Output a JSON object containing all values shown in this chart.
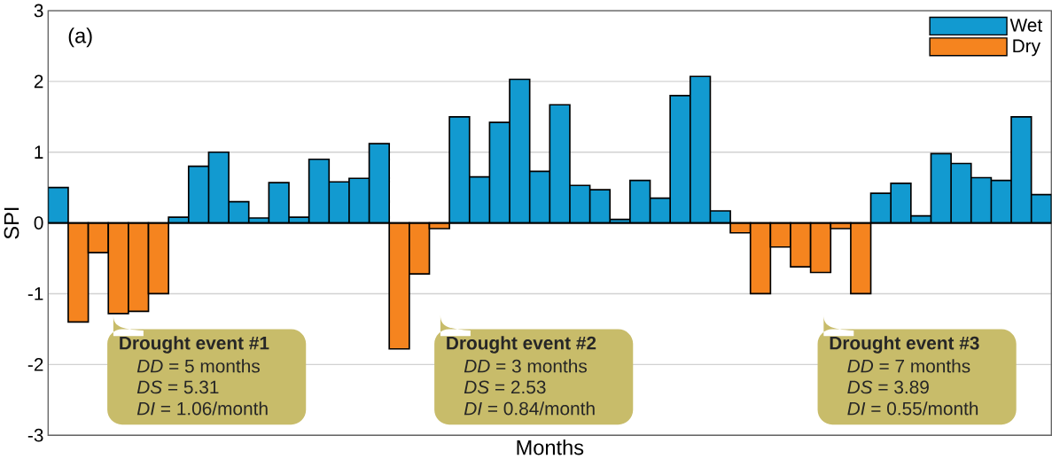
{
  "chart_data": {
    "type": "bar",
    "xlabel": "Months",
    "ylabel": "SPI",
    "categories": [
      null,
      null,
      null,
      null,
      null,
      null,
      null,
      null,
      null,
      null,
      null,
      null,
      null,
      null,
      null,
      null,
      null,
      null,
      null,
      null,
      null,
      null,
      null,
      null,
      null,
      null,
      null,
      null,
      null,
      null,
      null,
      null,
      null,
      null,
      null,
      null,
      null,
      null,
      null,
      null,
      null,
      null,
      null,
      null,
      null,
      null,
      null,
      null,
      null,
      null
    ],
    "series": [
      {
        "name": "Wet",
        "color": "#129ad0",
        "values": [
          0.5,
          null,
          null,
          null,
          null,
          null,
          0.08,
          0.8,
          1.0,
          0.3,
          0.07,
          0.57,
          0.08,
          0.9,
          0.58,
          0.63,
          1.12,
          null,
          null,
          null,
          1.5,
          0.65,
          1.42,
          2.03,
          0.73,
          1.67,
          0.53,
          0.47,
          0.05,
          0.6,
          0.35,
          1.8,
          2.07,
          0.17,
          null,
          null,
          null,
          null,
          null,
          null,
          null,
          0.42,
          0.56,
          0.1,
          0.98,
          0.84,
          0.64,
          0.6,
          1.5,
          0.4
        ]
      },
      {
        "name": "Dry",
        "color": "#f5841f",
        "values": [
          null,
          -1.4,
          -0.42,
          -1.28,
          -1.25,
          -1.0,
          null,
          null,
          null,
          null,
          null,
          null,
          null,
          null,
          null,
          null,
          null,
          -1.78,
          -0.72,
          -0.08,
          null,
          null,
          null,
          null,
          null,
          null,
          null,
          null,
          null,
          null,
          null,
          null,
          null,
          null,
          -0.14,
          -1.0,
          -0.34,
          -0.62,
          -0.7,
          -0.08,
          -1.0,
          null,
          null,
          null,
          null,
          null,
          null,
          null,
          null,
          null
        ]
      }
    ],
    "ylim": [
      -3,
      3
    ],
    "yticks": [
      -3,
      -2,
      -1,
      0,
      1,
      2,
      3
    ],
    "grid": "y",
    "legend": "top right",
    "annotations": [
      "(a)",
      "**Drought event #1**",
      "*DD* = 5 months",
      "*DS* = 5.31",
      "*DI* = 1.06/month",
      "**Drought event #2**",
      "*DD* = 3 months",
      "*DS* = 2.53",
      "*DI* = 0.84/month",
      "**Drought event #3**",
      "*DD* = 7 months",
      "*DS* = 3.89",
      "*DI* = 0.55/month"
    ]
  }
}
